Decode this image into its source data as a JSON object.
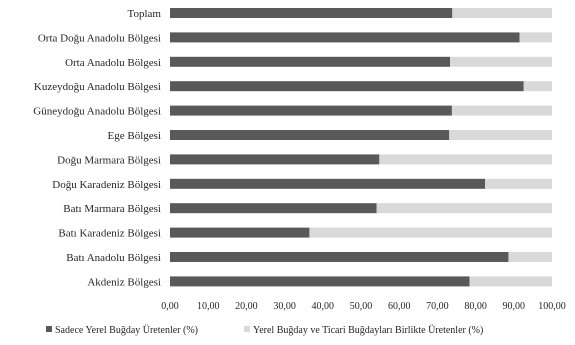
{
  "chart_data": {
    "type": "bar",
    "orientation": "horizontal",
    "stacked": "percent",
    "categories": [
      "Toplam",
      "Orta Doğu Anadolu Bölgesi",
      "Orta Anadolu Bölgesi",
      "Kuzeydoğu Anadolu Bölgesi",
      "Güneydoğu Anadolu Bölgesi",
      "Ege Bölgesi",
      "Doğu Marmara Bölgesi",
      "Doğu Karadeniz Bölgesi",
      "Batı Marmara Bölgesi",
      "Batı Karadeniz Bölgesi",
      "Batı Anadolu Bölgesi",
      "Akdeniz Bölgesi"
    ],
    "series": [
      {
        "name": "Sadece Yerel Buğday Üretenler (%)",
        "color": "#595959",
        "values": [
          73.9,
          91.5,
          73.3,
          92.6,
          73.8,
          73.1,
          54.8,
          82.5,
          54.1,
          36.5,
          88.6,
          78.4
        ]
      },
      {
        "name": "Yerel Buğday ve Ticari Buğdayları Birlikte Üretenler (%)",
        "color": "#d9d9d9",
        "values": [
          26.1,
          8.5,
          26.7,
          7.4,
          26.2,
          26.9,
          45.2,
          17.5,
          45.9,
          63.5,
          11.4,
          21.6
        ]
      }
    ],
    "x_ticks": [
      "0,00",
      "10,00",
      "20,00",
      "30,00",
      "40,00",
      "50,00",
      "60,00",
      "70,00",
      "80,00",
      "90,00",
      "100,00"
    ],
    "xlim": [
      0,
      100
    ],
    "grid": false,
    "legend_position": "bottom"
  }
}
